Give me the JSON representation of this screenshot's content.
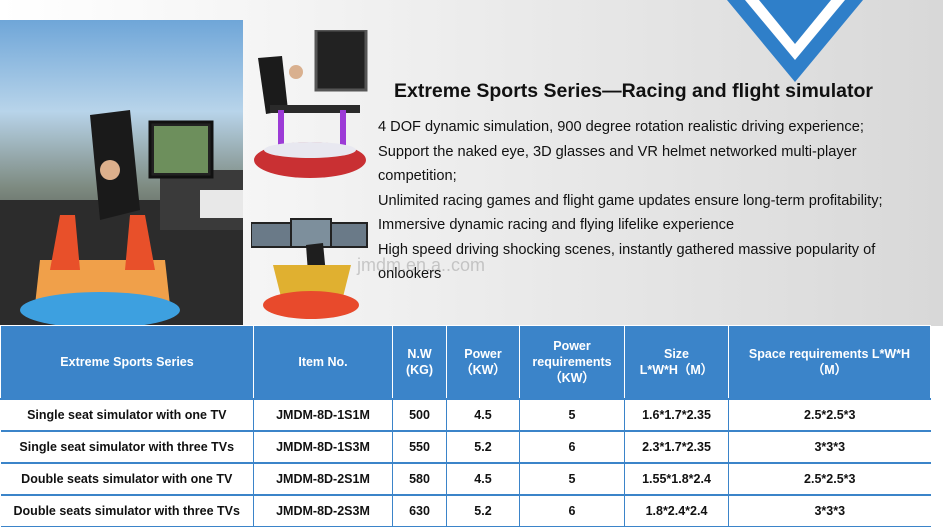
{
  "header": {
    "title": "Extreme Sports Series—Racing and flight simulator",
    "watermark": "jmdm.en.a..com"
  },
  "features": [
    "4 DOF dynamic simulation,  900 degree rotation realistic driving experience;",
    "Support the naked eye, 3D glasses and VR helmet networked multi-player competition;",
    "Unlimited racing games and flight game updates ensure long-term profitability;",
    "Immersive dynamic racing and flying lifelike experience",
    "High speed driving shocking scenes, instantly gathered massive popularity of onlookers"
  ],
  "table": {
    "headers": [
      "Extreme Sports Series",
      "Item No.",
      "N.W\n(KG)",
      "Power\n（KW）",
      "Power\nrequirements\n（KW）",
      "Size\nL*W*H（M）",
      "Space requirements  L*W*H\n（M）"
    ],
    "rows": [
      [
        "Single seat simulator with one TV",
        "JMDM-8D-1S1M",
        "500",
        "4.5",
        "5",
        "1.6*1.7*2.35",
        "2.5*2.5*3"
      ],
      [
        "Single seat simulator with three TVs",
        "JMDM-8D-1S3M",
        "550",
        "5.2",
        "6",
        "2.3*1.7*2.35",
        "3*3*3"
      ],
      [
        "Double seats simulator with one TV",
        "JMDM-8D-2S1M",
        "580",
        "4.5",
        "5",
        "1.55*1.8*2.4",
        "2.5*2.5*3"
      ],
      [
        "Double seats simulator with three TVs",
        "JMDM-8D-2S3M",
        "630",
        "5.2",
        "6",
        "1.8*2.4*2.4",
        "3*3*3"
      ]
    ]
  },
  "colors": {
    "header_bg": "#3b84c9",
    "chevron": "#2f7fc9"
  }
}
